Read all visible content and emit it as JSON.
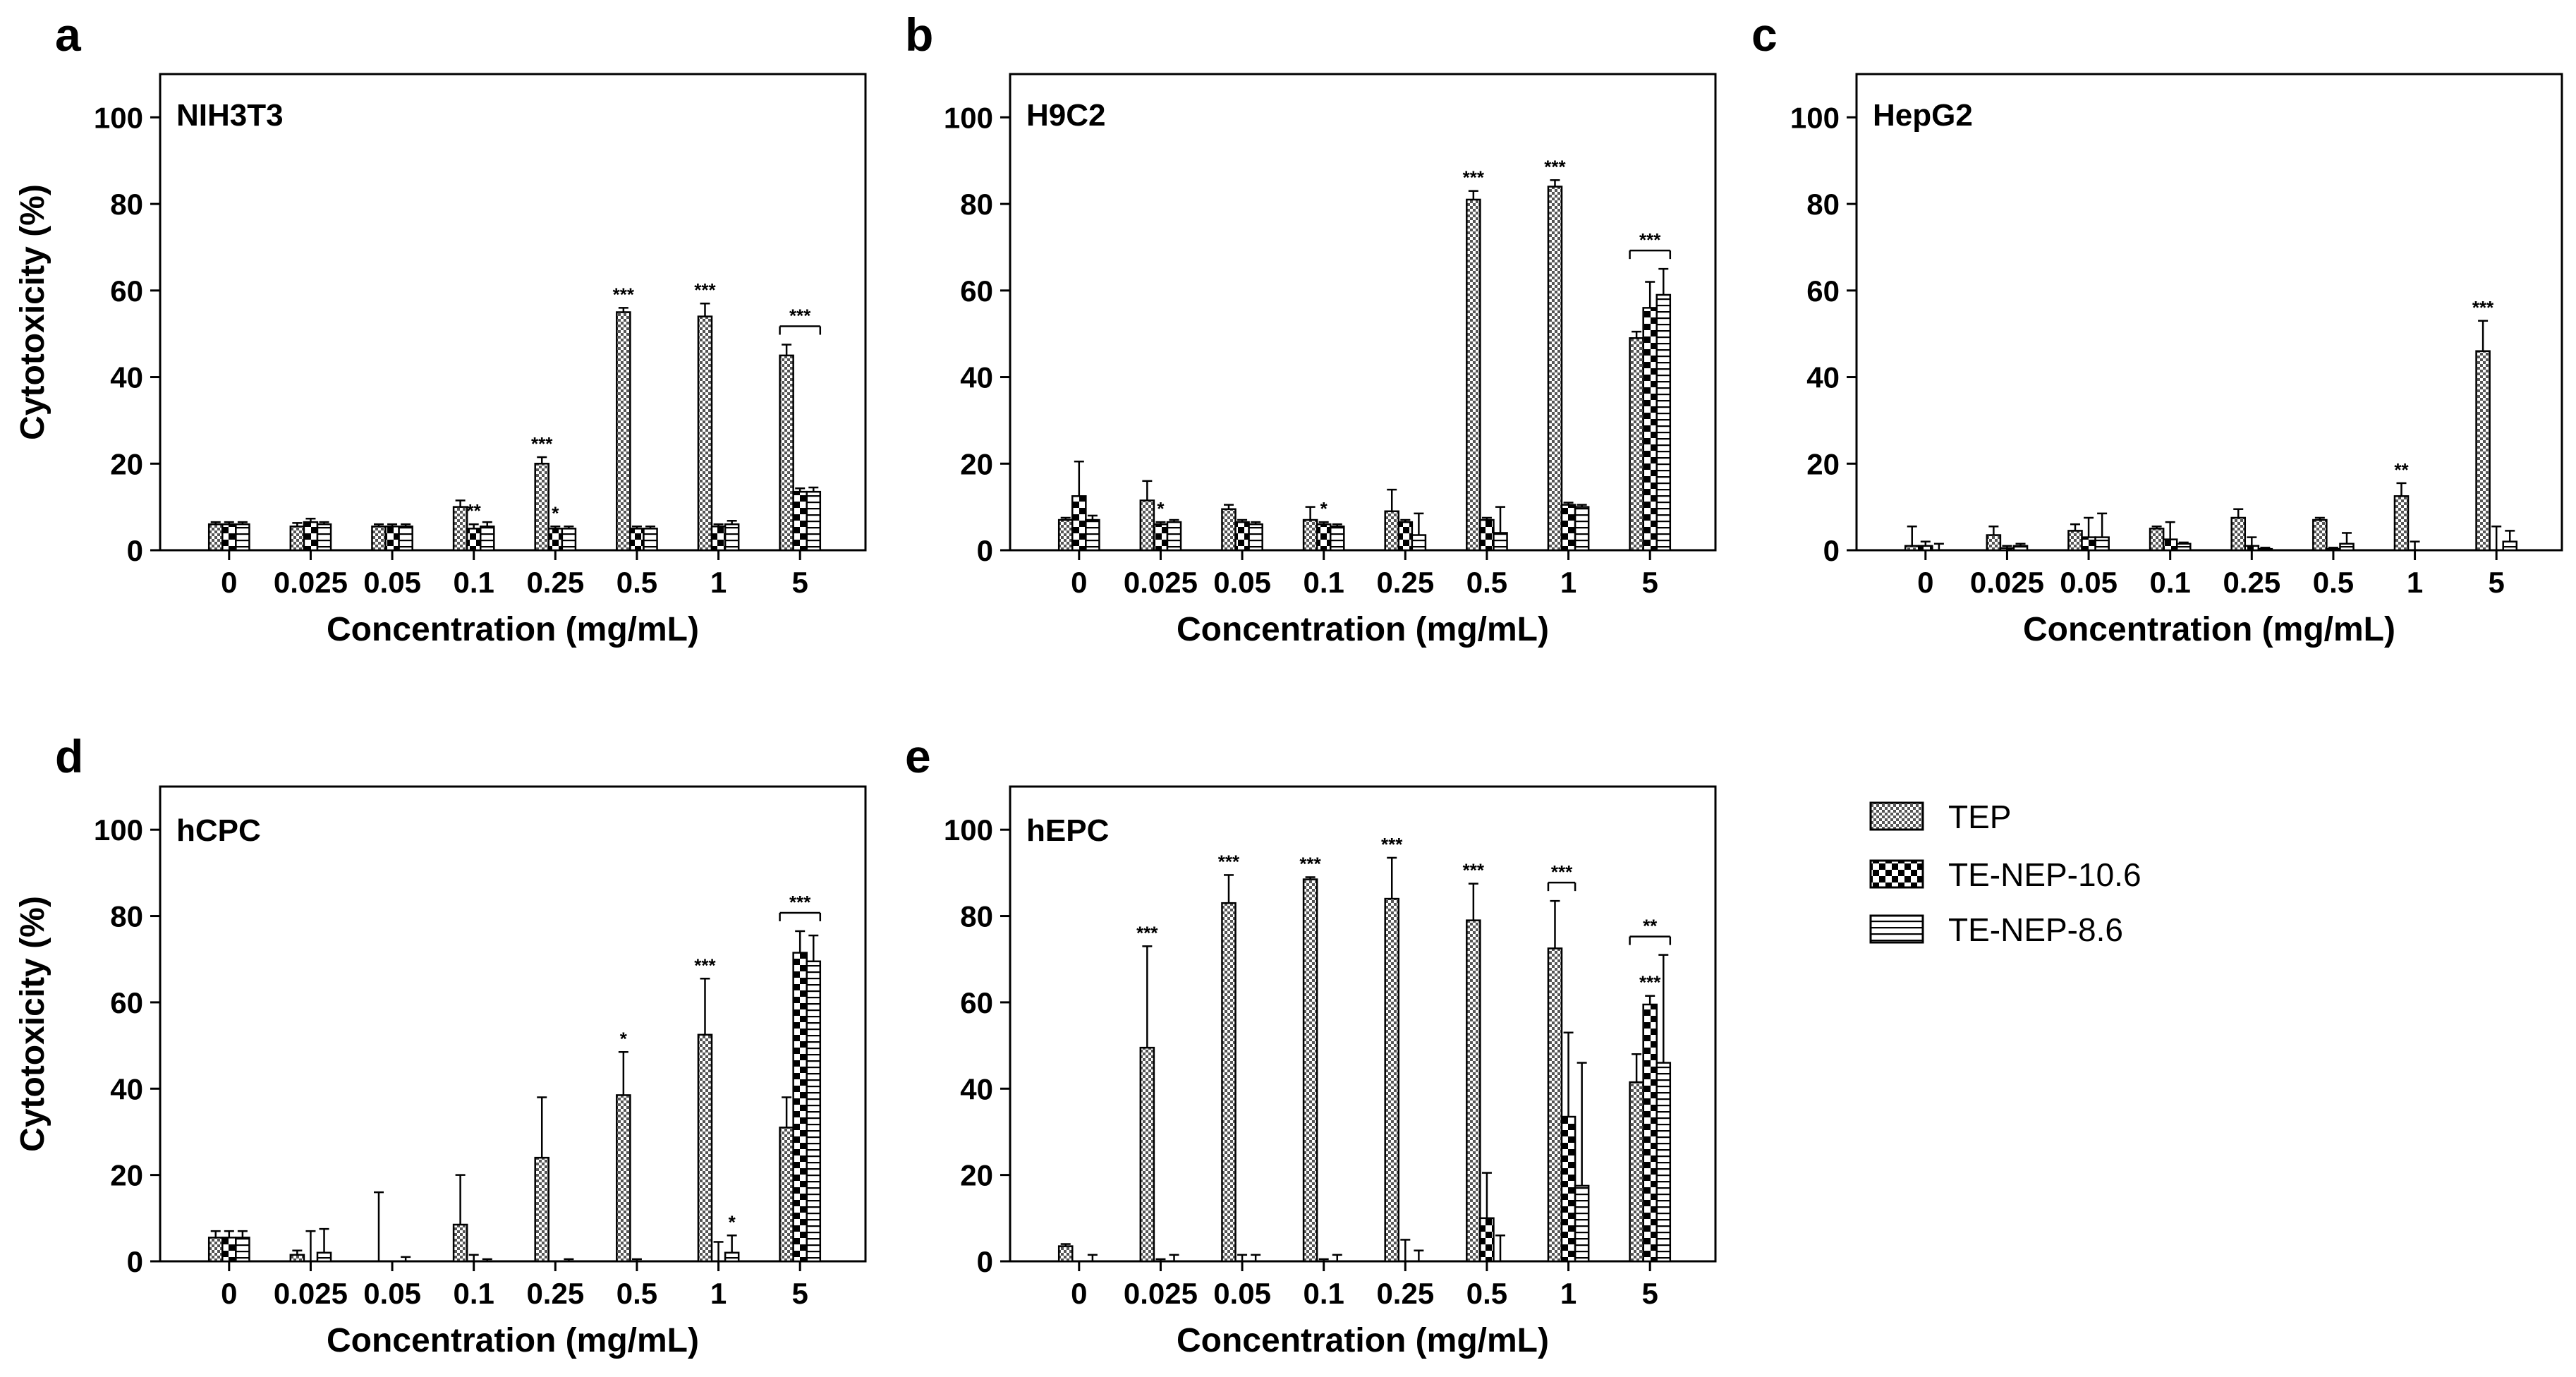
{
  "figure": {
    "legend": [
      {
        "name": "TEP",
        "pattern": "pat-tep"
      },
      {
        "name": "TE-NEP-10.6",
        "pattern": "pat-checker"
      },
      {
        "name": "TE-NEP-8.6",
        "pattern": "pat-hlines"
      }
    ]
  },
  "chart_data": [
    {
      "panel": "a",
      "title": "NIH3T3",
      "type": "bar",
      "categories": [
        "0",
        "0.025",
        "0.05",
        "0.1",
        "0.25",
        "0.5",
        "1",
        "5"
      ],
      "xlabel": "Concentration (mg/mL)",
      "ylabel": "Cytotoxicity (%)",
      "ylim": [
        0,
        110
      ],
      "yticks": [
        0,
        20,
        40,
        60,
        80,
        100
      ],
      "series": [
        {
          "name": "TEP",
          "values": [
            6,
            5.5,
            5.5,
            10,
            20,
            55,
            54,
            45
          ],
          "errors": [
            0.5,
            0.8,
            0.5,
            1.5,
            1.5,
            1,
            3,
            2.5
          ]
        },
        {
          "name": "TE-NEP-10.6",
          "values": [
            6,
            6.5,
            5.5,
            5,
            5,
            5,
            5.5,
            13.5
          ],
          "errors": [
            0.5,
            0.8,
            0.5,
            1,
            0.5,
            0.5,
            0.5,
            0.8
          ]
        },
        {
          "name": "TE-NEP-8.6",
          "values": [
            6,
            6,
            5.5,
            5.5,
            5,
            5,
            6,
            13.5
          ],
          "errors": [
            0.5,
            0.5,
            0.5,
            1,
            0.5,
            0.5,
            0.8,
            1
          ]
        }
      ],
      "annotations": [
        {
          "category": 3,
          "series": 1,
          "text": "**"
        },
        {
          "category": 4,
          "series": 0,
          "text": "***"
        },
        {
          "category": 4,
          "series": 1,
          "text": "*"
        },
        {
          "category": 5,
          "series": 0,
          "text": "***"
        },
        {
          "category": 6,
          "series": 0,
          "text": "***"
        },
        {
          "category": 7,
          "series": "group",
          "text": "***"
        }
      ]
    },
    {
      "panel": "b",
      "title": "H9C2",
      "type": "bar",
      "categories": [
        "0",
        "0.025",
        "0.05",
        "0.1",
        "0.25",
        "0.5",
        "1",
        "5"
      ],
      "xlabel": "Concentration (mg/mL)",
      "ylabel": "",
      "ylim": [
        0,
        110
      ],
      "yticks": [
        0,
        20,
        40,
        60,
        80,
        100
      ],
      "series": [
        {
          "name": "TEP",
          "values": [
            7,
            11.5,
            9.5,
            7,
            9,
            81,
            84,
            49
          ],
          "errors": [
            0.5,
            4.5,
            1,
            3,
            5,
            2,
            1.5,
            1.5
          ]
        },
        {
          "name": "TE-NEP-10.6",
          "values": [
            12.5,
            6,
            6.5,
            6,
            6.5,
            7,
            10.5,
            56
          ],
          "errors": [
            8,
            0.5,
            0.5,
            0.5,
            0.5,
            0.5,
            0.5,
            6
          ]
        },
        {
          "name": "TE-NEP-8.6",
          "values": [
            7,
            6.5,
            6,
            5.5,
            3.5,
            4,
            10,
            59
          ],
          "errors": [
            1,
            0.5,
            0.5,
            0.5,
            5,
            6,
            0.5,
            6
          ]
        }
      ],
      "annotations": [
        {
          "category": 1,
          "series": 1,
          "text": "*"
        },
        {
          "category": 3,
          "series": 1,
          "text": "*"
        },
        {
          "category": 5,
          "series": 0,
          "text": "***"
        },
        {
          "category": 6,
          "series": 0,
          "text": "***"
        },
        {
          "category": 7,
          "series": "group",
          "text": "***"
        }
      ]
    },
    {
      "panel": "c",
      "title": "HepG2",
      "type": "bar",
      "categories": [
        "0",
        "0.025",
        "0.05",
        "0.1",
        "0.25",
        "0.5",
        "1",
        "5"
      ],
      "xlabel": "Concentration (mg/mL)",
      "ylabel": "",
      "ylim": [
        0,
        110
      ],
      "yticks": [
        0,
        20,
        40,
        60,
        80,
        100
      ],
      "series": [
        {
          "name": "TEP",
          "values": [
            1,
            3.5,
            4.5,
            5,
            7.5,
            7,
            12.5,
            46
          ],
          "errors": [
            4.5,
            2,
            1.5,
            0.5,
            2,
            0.5,
            3,
            7
          ]
        },
        {
          "name": "TE-NEP-10.6",
          "values": [
            1,
            0.5,
            3,
            2.5,
            1,
            0.3,
            0,
            0
          ],
          "errors": [
            1,
            0.5,
            4.5,
            4,
            2,
            0.3,
            2,
            5.5
          ]
        },
        {
          "name": "TE-NEP-8.6",
          "values": [
            0,
            1,
            3,
            1.5,
            0.3,
            1.5,
            0,
            2
          ],
          "errors": [
            1.5,
            0.5,
            5.5,
            0.3,
            0.3,
            2.5,
            0,
            2.5
          ]
        }
      ],
      "annotations": [
        {
          "category": 6,
          "series": 0,
          "text": "**"
        },
        {
          "category": 7,
          "series": 0,
          "text": "***"
        }
      ]
    },
    {
      "panel": "d",
      "title": "hCPC",
      "type": "bar",
      "categories": [
        "0",
        "0.025",
        "0.05",
        "0.1",
        "0.25",
        "0.5",
        "1",
        "5"
      ],
      "xlabel": "Concentration (mg/mL)",
      "ylabel": "Cytotoxicity (%)",
      "ylim": [
        0,
        110
      ],
      "yticks": [
        0,
        20,
        40,
        60,
        80,
        100
      ],
      "series": [
        {
          "name": "TEP",
          "values": [
            5.5,
            1.5,
            0,
            8.5,
            24,
            38.5,
            52.5,
            31
          ],
          "errors": [
            1.5,
            1,
            16,
            11.5,
            14,
            10,
            13,
            7
          ]
        },
        {
          "name": "TE-NEP-10.6",
          "values": [
            5.5,
            0,
            0,
            0,
            0,
            0,
            0,
            71.5
          ],
          "errors": [
            1.5,
            7,
            0,
            1.5,
            0,
            0.5,
            4.5,
            5
          ]
        },
        {
          "name": "TE-NEP-8.6",
          "values": [
            5.5,
            2,
            0,
            0,
            0,
            0,
            2,
            69.5
          ],
          "errors": [
            1.5,
            5.5,
            1,
            0.5,
            0.5,
            0,
            4,
            6
          ]
        }
      ],
      "annotations": [
        {
          "category": 5,
          "series": 0,
          "text": "*"
        },
        {
          "category": 6,
          "series": 0,
          "text": "***"
        },
        {
          "category": 6,
          "series": 2,
          "text": "*"
        },
        {
          "category": 7,
          "series": "group",
          "text": "***"
        }
      ]
    },
    {
      "panel": "e",
      "title": "hEPC",
      "type": "bar",
      "categories": [
        "0",
        "0.025",
        "0.05",
        "0.1",
        "0.25",
        "0.5",
        "1",
        "5"
      ],
      "xlabel": "Concentration (mg/mL)",
      "ylabel": "",
      "ylim": [
        0,
        110
      ],
      "yticks": [
        0,
        20,
        40,
        60,
        80,
        100
      ],
      "series": [
        {
          "name": "TEP",
          "values": [
            3.5,
            49.5,
            83,
            88.5,
            84,
            79,
            72.5,
            41.5
          ],
          "errors": [
            0.5,
            23.5,
            6.5,
            0.5,
            9.5,
            8.5,
            11,
            6.5
          ]
        },
        {
          "name": "TE-NEP-10.6",
          "values": [
            0,
            0,
            0,
            0,
            0,
            10,
            33.5,
            59.5
          ],
          "errors": [
            0,
            0.5,
            1.5,
            0.5,
            5,
            10.5,
            19.5,
            2
          ]
        },
        {
          "name": "TE-NEP-8.6",
          "values": [
            0,
            0,
            0,
            0,
            0,
            0,
            17.5,
            46
          ],
          "errors": [
            1.5,
            1.5,
            1.5,
            1.5,
            2.5,
            6,
            28.5,
            25
          ]
        }
      ],
      "annotations": [
        {
          "category": 1,
          "series": 0,
          "text": "***"
        },
        {
          "category": 2,
          "series": 0,
          "text": "***"
        },
        {
          "category": 3,
          "series": 0,
          "text": "***"
        },
        {
          "category": 4,
          "series": 0,
          "text": "***"
        },
        {
          "category": 5,
          "series": 0,
          "text": "***"
        },
        {
          "category": 6,
          "series": "pair01",
          "text": "***"
        },
        {
          "category": 7,
          "series": "group",
          "text": "**"
        },
        {
          "category": 7,
          "series": 1,
          "text": "***"
        }
      ]
    }
  ]
}
